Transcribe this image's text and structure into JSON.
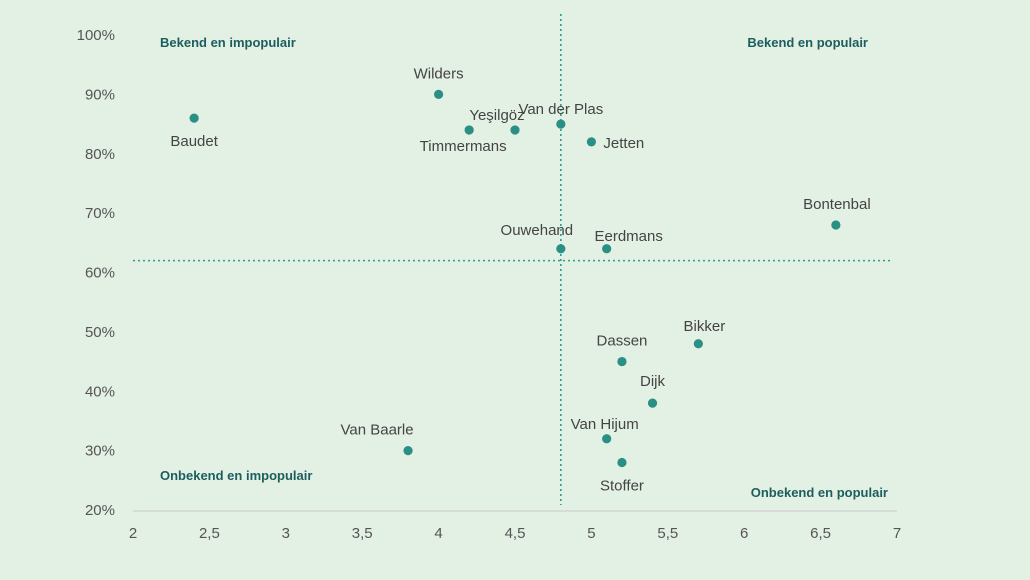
{
  "chart_data": {
    "type": "scatter",
    "title": "",
    "xlabel": "",
    "ylabel": "",
    "xlim": [
      2,
      7
    ],
    "ylim": [
      20,
      100
    ],
    "x_ticks": [
      "2",
      "2,5",
      "3",
      "3,5",
      "4",
      "4,5",
      "5",
      "5,5",
      "6",
      "6,5",
      "7"
    ],
    "y_ticks": [
      "20%",
      "30%",
      "40%",
      "50%",
      "60%",
      "70%",
      "80%",
      "90%",
      "100%"
    ],
    "grid": false,
    "dot_color": "#2a8f84",
    "reference_lines": {
      "x": 4.8,
      "y": 62,
      "color": "#2a9d94"
    },
    "quadrants": {
      "top_left": "Bekend en impopulair",
      "top_right": "Bekend en populair",
      "bottom_left": "Onbekend en impopulair",
      "bottom_right": "Onbekend en populair"
    },
    "points": [
      {
        "label": "Baudet",
        "x": 2.4,
        "y": 86
      },
      {
        "label": "Wilders",
        "x": 4.0,
        "y": 90
      },
      {
        "label": "Timmermans",
        "x": 4.2,
        "y": 84
      },
      {
        "label": "Yeşilgöz",
        "x": 4.5,
        "y": 84
      },
      {
        "label": "Van der Plas",
        "x": 4.8,
        "y": 85
      },
      {
        "label": "Jetten",
        "x": 5.0,
        "y": 82
      },
      {
        "label": "Ouwehand",
        "x": 4.8,
        "y": 64
      },
      {
        "label": "Eerdmans",
        "x": 5.1,
        "y": 64
      },
      {
        "label": "Bontenbal",
        "x": 6.6,
        "y": 68
      },
      {
        "label": "Dassen",
        "x": 5.2,
        "y": 45
      },
      {
        "label": "Bikker",
        "x": 5.7,
        "y": 48
      },
      {
        "label": "Dijk",
        "x": 5.4,
        "y": 38
      },
      {
        "label": "Van Hijum",
        "x": 5.1,
        "y": 32
      },
      {
        "label": "Stoffer",
        "x": 5.2,
        "y": 28
      },
      {
        "label": "Van Baarle",
        "x": 3.8,
        "y": 30
      }
    ]
  }
}
